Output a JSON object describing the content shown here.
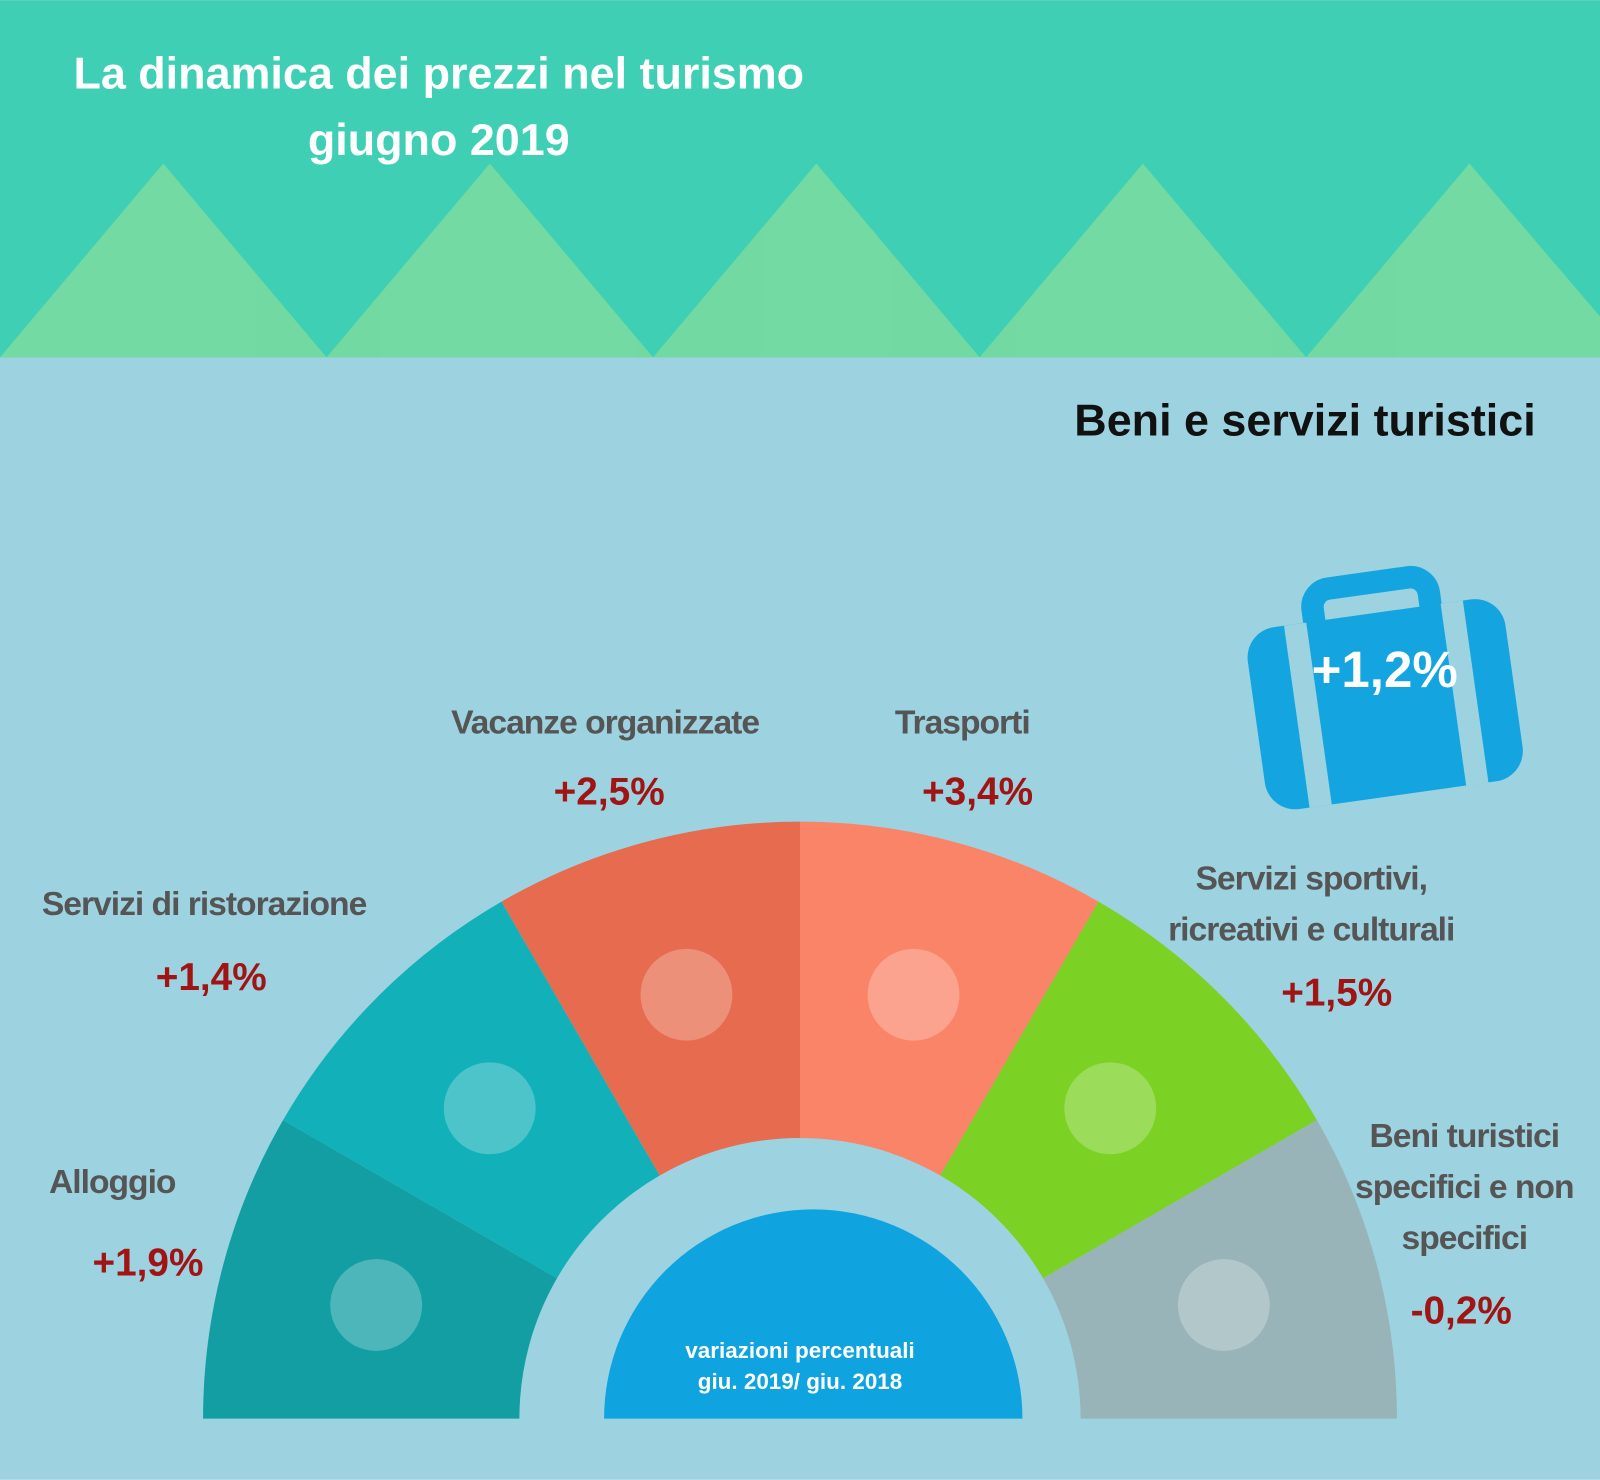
{
  "header": {
    "title": [
      "La dinamica dei prezzi nel turismo",
      "giugno 2019"
    ]
  },
  "section_title": "Beni e servizi turistici",
  "total": "+1,2%",
  "segments": [
    {
      "label": [
        "Alloggio"
      ],
      "value": "+1,9%"
    },
    {
      "label": [
        "Servizi di ristorazione"
      ],
      "value": "+1,4%"
    },
    {
      "label": [
        "Vacanze organizzate"
      ],
      "value": "+2,5%"
    },
    {
      "label": [
        "Trasporti"
      ],
      "value": "+3,4%"
    },
    {
      "label": [
        "Servizi sportivi,",
        "ricreativi e culturali"
      ],
      "value": "+1,5%"
    },
    {
      "label": [
        "Beni turistici",
        "specifici e non",
        "specifici"
      ],
      "value": "-0,2%"
    }
  ],
  "center_note": [
    "variazioni percentuali",
    "giu. 2019/ giu.  2018"
  ]
}
